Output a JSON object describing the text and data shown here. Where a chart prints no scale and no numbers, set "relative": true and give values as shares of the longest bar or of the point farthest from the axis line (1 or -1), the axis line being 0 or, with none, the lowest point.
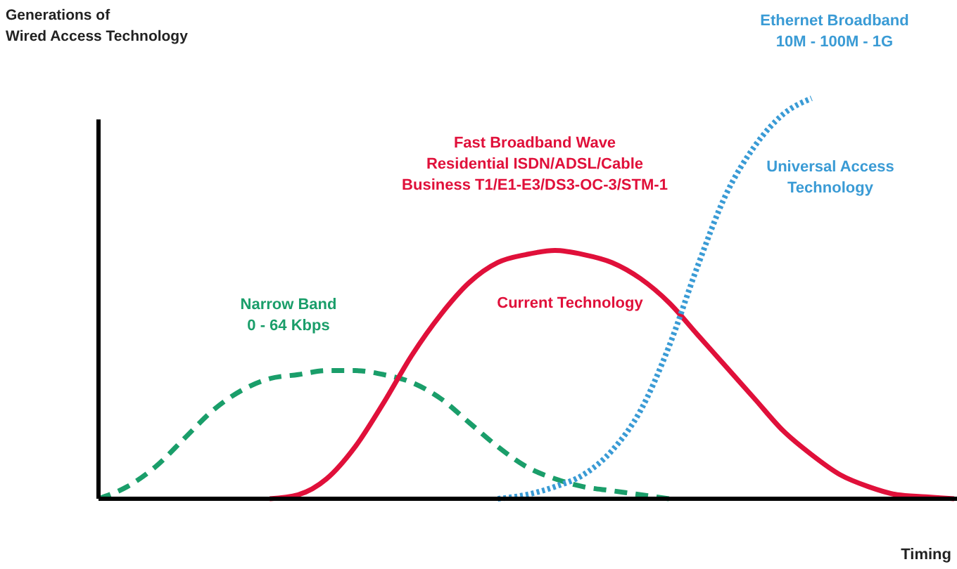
{
  "chart_data": {
    "type": "line",
    "relative": true,
    "ylabel": "Generations of\nWired Access Technology",
    "xlabel": "Timing",
    "categories": [
      null,
      null,
      null,
      null,
      null,
      null,
      null,
      null,
      null,
      null,
      null,
      null,
      null,
      null,
      null,
      null,
      null,
      null,
      null,
      null,
      null,
      null,
      null,
      null,
      null,
      null,
      null,
      null,
      null,
      null,
      null
    ],
    "series": [
      {
        "color": "#1a9e6a",
        "line_style": "dashed",
        "values": [
          0,
          0.03,
          0.08,
          0.15,
          0.22,
          0.27,
          0.3,
          0.31,
          0.32,
          0.32,
          0.31,
          0.29,
          0.25,
          0.19,
          0.13,
          0.08,
          0.05,
          0.03,
          0.02,
          0.01,
          0,
          null,
          null,
          null,
          null,
          null,
          null,
          null,
          null,
          null,
          null
        ]
      },
      {
        "color": "#e0103a",
        "line_style": "solid",
        "values": [
          null,
          null,
          null,
          null,
          null,
          null,
          0,
          0.01,
          0.05,
          0.13,
          0.24,
          0.36,
          0.46,
          0.54,
          0.59,
          0.61,
          0.62,
          0.61,
          0.59,
          0.55,
          0.49,
          0.41,
          0.33,
          0.25,
          0.17,
          0.11,
          0.06,
          0.03,
          0.01,
          0.005,
          0
        ]
      },
      {
        "color": "#3a9bd5",
        "line_style": "dotted",
        "values": [
          null,
          null,
          null,
          null,
          null,
          null,
          null,
          null,
          null,
          null,
          null,
          null,
          null,
          null,
          0,
          0.01,
          0.03,
          0.06,
          0.12,
          0.22,
          0.38,
          0.58,
          0.76,
          0.88,
          0.96,
          1,
          null,
          null,
          null,
          null,
          null
        ]
      }
    ],
    "annotations": [
      "Narrow Band\n0 - 64 Kbps",
      "Fast Broadband Wave\nResidential ISDN/ADSL/Cable\nBusiness T1/E1-E3/DS3-OC-3/STM-1",
      "Current Technology",
      "Ethernet Broadband\n10M - 100M - 1G",
      "Universal Access\nTechnology"
    ]
  }
}
